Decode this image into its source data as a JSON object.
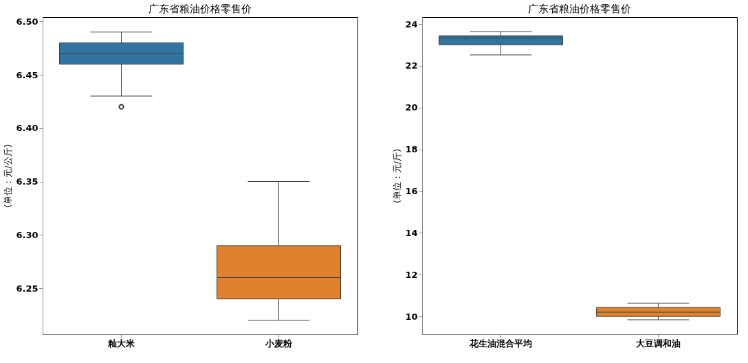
{
  "chart_data": [
    {
      "type": "box",
      "title": "广东省粮油价格零售价",
      "ylabel": "(单位：元/公斤)",
      "categories": [
        "籼大米",
        "小麦粉"
      ],
      "colors": [
        "#3274a1",
        "#e1812c"
      ],
      "boxes": [
        {
          "low": 6.43,
          "q1": 6.46,
          "median": 6.47,
          "q3": 6.48,
          "high": 6.49,
          "outliers": [
            6.42
          ]
        },
        {
          "low": 6.22,
          "q1": 6.24,
          "median": 6.26,
          "q3": 6.29,
          "high": 6.35
        }
      ],
      "ylim": [
        6.207,
        6.504
      ],
      "yticks": [
        6.25,
        {
          "value": 6.3,
          "label": "6.30"
        },
        6.35,
        {
          "value": 6.4,
          "label": "6.40"
        },
        6.45,
        {
          "value": 6.5,
          "label": "6.50"
        }
      ],
      "grid": false
    },
    {
      "type": "box",
      "title": "广东省粮油价格零售价",
      "ylabel": "(单位：元/斤)",
      "categories": [
        "花生油混合平均",
        "大豆调和油"
      ],
      "colors": [
        "#3274a1",
        "#e1812c"
      ],
      "boxes": [
        {
          "low": 22.52,
          "q1": 23.01,
          "median": 23.34,
          "q3": 23.44,
          "high": 23.64
        },
        {
          "low": 9.84,
          "q1": 10.0,
          "median": 10.2,
          "q3": 10.43,
          "high": 10.63
        }
      ],
      "ylim": [
        9.15,
        24.33
      ],
      "yticks": [
        10,
        12,
        14,
        16,
        18,
        20,
        22,
        24
      ],
      "grid": false
    }
  ]
}
